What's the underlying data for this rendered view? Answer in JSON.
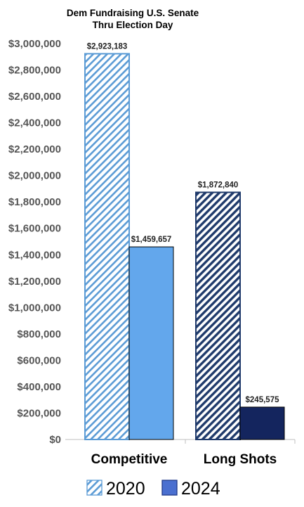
{
  "chart_data": {
    "type": "bar",
    "title_lines": [
      "Dem Fundraising U.S. Senate",
      "Thru Election Day"
    ],
    "categories": [
      "Competitive",
      "Long Shots"
    ],
    "series": [
      {
        "name": "2020",
        "values": [
          2923183,
          1872840
        ],
        "labels": [
          "$2,923,183",
          "$1,872,840"
        ],
        "style": "hatched"
      },
      {
        "name": "2024",
        "values": [
          1459657,
          245575
        ],
        "labels": [
          "$1,459,657",
          "$245,575"
        ],
        "style": "solid"
      }
    ],
    "series_colors": [
      [
        "#5b9bd5",
        "#1f3a6b"
      ],
      [
        "#63a7ec",
        "#14255e"
      ]
    ],
    "ylim": [
      0,
      3000000
    ],
    "ytick_step": 200000,
    "yticks": [
      "$0",
      "$200,000",
      "$400,000",
      "$600,000",
      "$800,000",
      "$1,000,000",
      "$1,200,000",
      "$1,400,000",
      "$1,600,000",
      "$1,800,000",
      "$2,000,000",
      "$2,200,000",
      "$2,400,000",
      "$2,600,000",
      "$2,800,000",
      "$3,000,000"
    ],
    "grid": false,
    "legend_position": "bottom"
  }
}
